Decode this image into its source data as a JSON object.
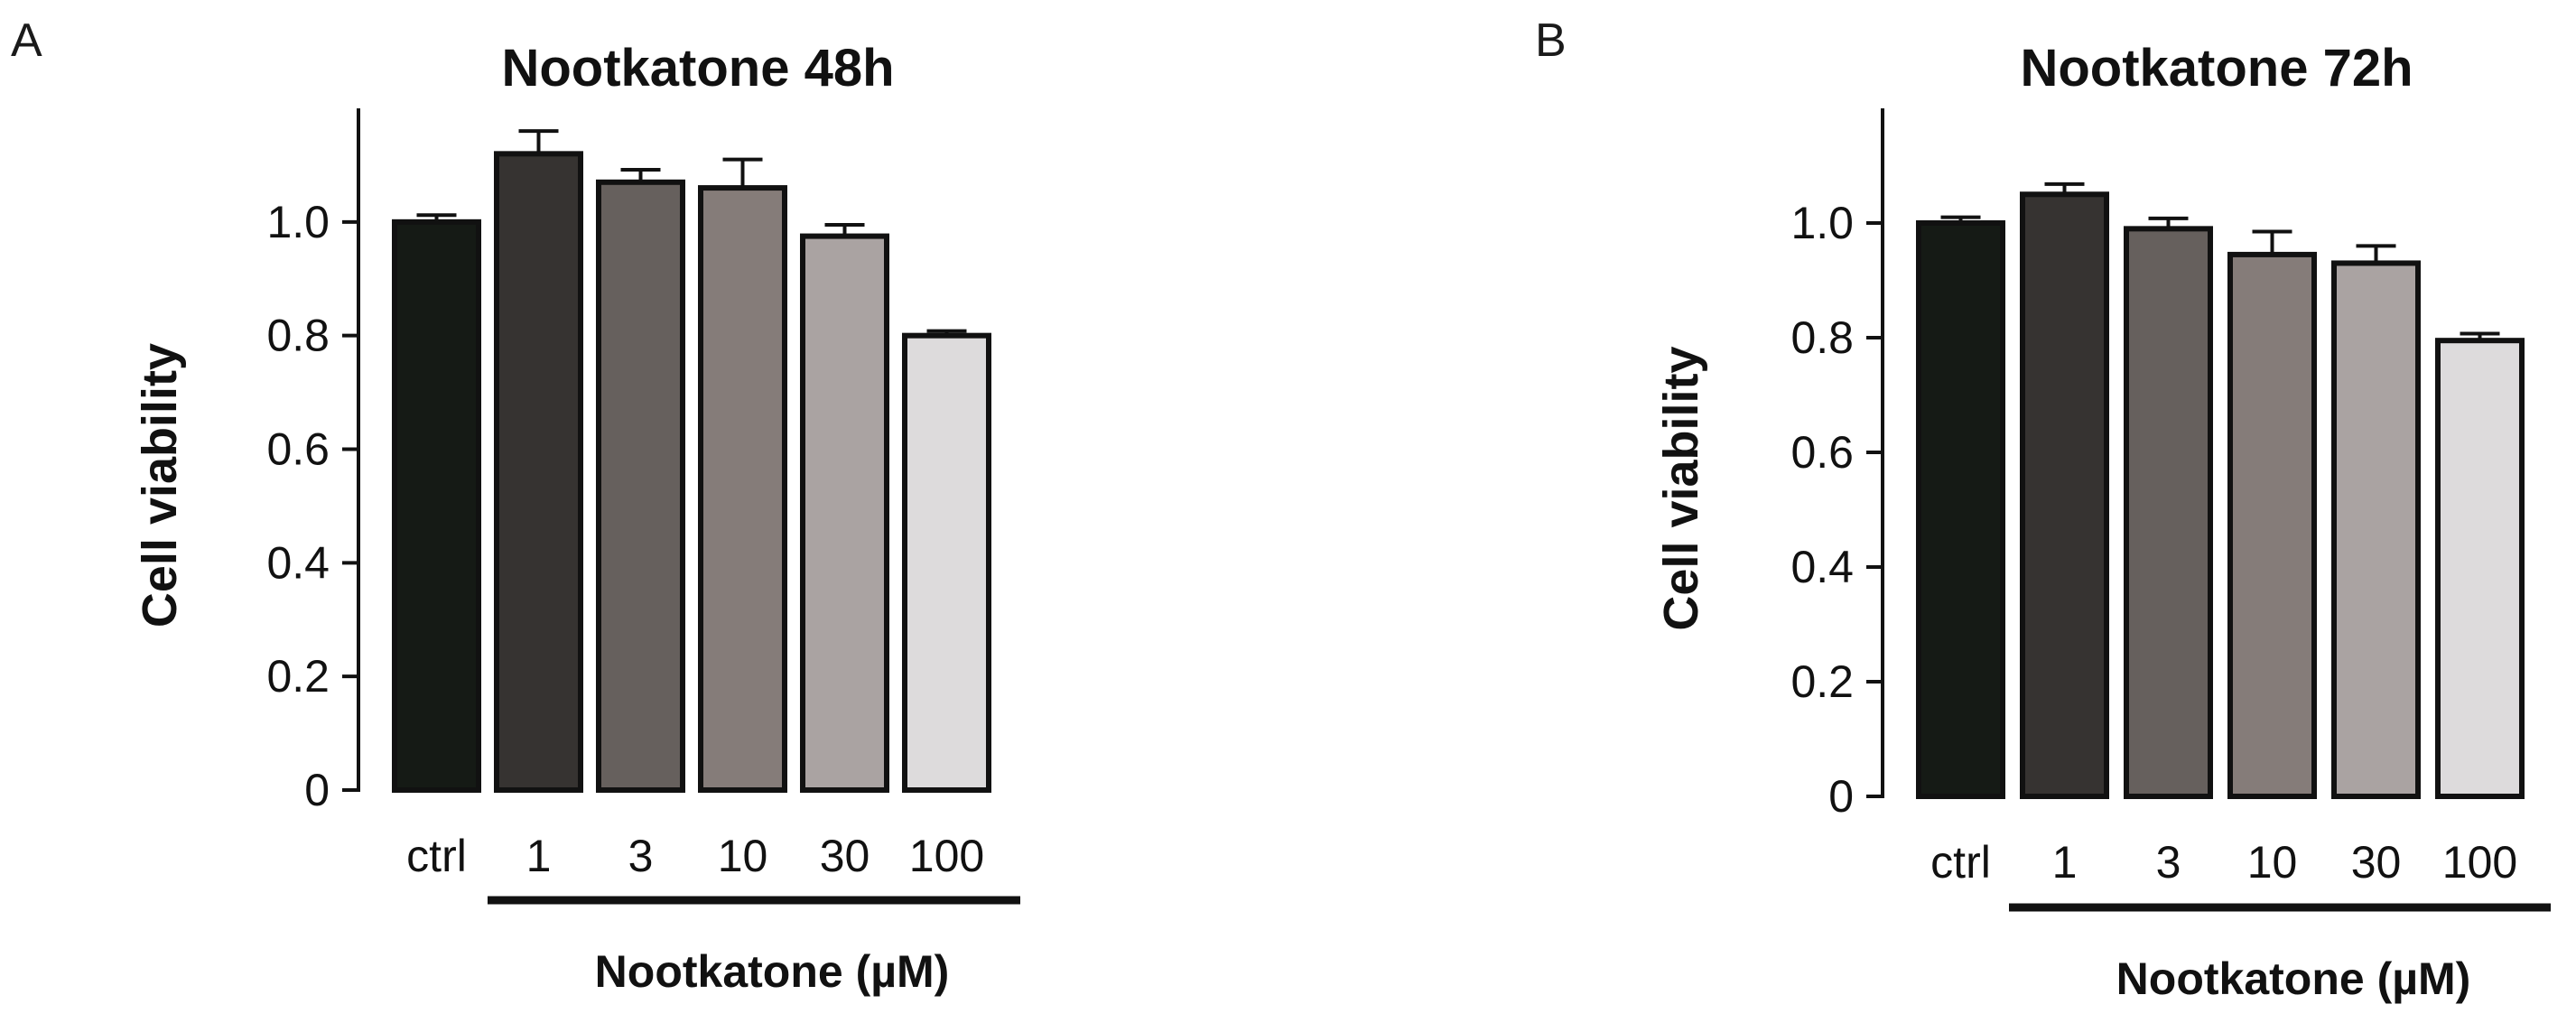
{
  "chart_data": [
    {
      "type": "bar",
      "panel": "A",
      "title": "Nootkatone 48h",
      "ylabel": "Cell viability",
      "xlabel": "Nootkatone (µM)",
      "categories": [
        "ctrl",
        "1",
        "3",
        "10",
        "30",
        "100"
      ],
      "values": [
        1.0,
        1.12,
        1.07,
        1.06,
        0.975,
        0.8
      ],
      "errors": [
        0.012,
        0.04,
        0.022,
        0.05,
        0.02,
        0.008
      ],
      "colors": [
        "#151a15",
        "#363331",
        "#66605d",
        "#857c79",
        "#aaa3a2",
        "#dddbdc"
      ],
      "ylim": [
        0,
        1.2
      ],
      "yticks": [
        0,
        0.2,
        0.4,
        0.6,
        0.8,
        1.0
      ],
      "ytick_labels": [
        "0",
        "0.2",
        "0.4",
        "0.6",
        "0.8",
        "1.0"
      ]
    },
    {
      "type": "bar",
      "panel": "B",
      "title": "Nootkatone 72h",
      "ylabel": "Cell viability",
      "xlabel": "Nootkatone (µM)",
      "categories": [
        "ctrl",
        "1",
        "3",
        "10",
        "30",
        "100"
      ],
      "values": [
        1.0,
        1.05,
        0.99,
        0.945,
        0.93,
        0.795
      ],
      "errors": [
        0.01,
        0.018,
        0.018,
        0.04,
        0.03,
        0.012
      ],
      "colors": [
        "#151a15",
        "#363331",
        "#66605d",
        "#857c79",
        "#aaa3a2",
        "#dddbdc"
      ],
      "ylim": [
        0,
        1.2
      ],
      "yticks": [
        0,
        0.2,
        0.4,
        0.6,
        0.8,
        1.0
      ],
      "ytick_labels": [
        "0",
        "0.2",
        "0.4",
        "0.6",
        "0.8",
        "1.0"
      ]
    }
  ]
}
